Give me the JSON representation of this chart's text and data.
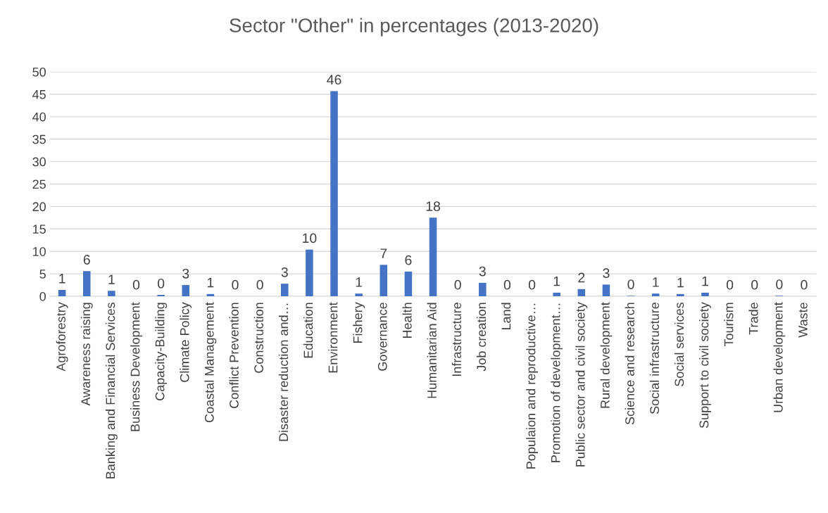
{
  "chart_data": {
    "type": "bar",
    "title": "Sector \"Other\" in percentages (2013-2020)",
    "categories": [
      "Agroforestry",
      "Awareness raising",
      "Banking and Financial Services",
      "Business Development",
      "Capacity-Building",
      "Climate Policy",
      "Coastal Management",
      "Conflict Prevention",
      "Construction",
      "Disaster reduction and…",
      "Education",
      "Environment",
      "Fishery",
      "Governance",
      "Health",
      "Humanitarian Aid",
      "Infrastructure",
      "Job creation",
      "Land",
      "Populaion and reproductive…",
      "Promotion of development…",
      "Public sector and civil society",
      "Rural development",
      "Science and research",
      "Social infrastructure",
      "Social services",
      "Support to civil society",
      "Tourism",
      "Trade",
      "Urban development",
      "Waste"
    ],
    "values": [
      1.4,
      5.6,
      1.2,
      0,
      0.3,
      2.5,
      0.5,
      0,
      0,
      2.8,
      10.4,
      45.7,
      0.6,
      7.0,
      5.5,
      17.5,
      0,
      3.0,
      0,
      0,
      0.8,
      1.6,
      2.6,
      0.1,
      0.6,
      0.5,
      0.8,
      0,
      0,
      0.1,
      0
    ],
    "value_labels": [
      "1",
      "6",
      "1",
      "0",
      "0",
      "3",
      "1",
      "0",
      "0",
      "3",
      "10",
      "46",
      "1",
      "7",
      "6",
      "18",
      "0",
      "3",
      "0",
      "0",
      "1",
      "2",
      "3",
      "0",
      "1",
      "1",
      "1",
      "0",
      "0",
      "0",
      "0"
    ],
    "color": "#4472c4",
    "ylim": [
      0,
      50
    ],
    "yticks": [
      0,
      5,
      10,
      15,
      20,
      25,
      30,
      35,
      40,
      45,
      50
    ],
    "grid": "y"
  }
}
